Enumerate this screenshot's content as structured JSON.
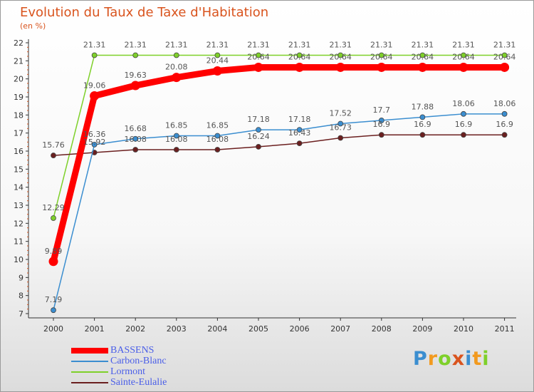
{
  "chart_data": {
    "type": "line",
    "title": "Evolution du Taux de Taxe d'Habitation",
    "subtitle": "(en %)",
    "categories": [
      "2000",
      "2001",
      "2002",
      "2003",
      "2004",
      "2005",
      "2006",
      "2007",
      "2008",
      "2009",
      "2010",
      "2011"
    ],
    "ylim": [
      7,
      22
    ],
    "yticks": [
      7,
      8,
      9,
      10,
      11,
      12,
      13,
      14,
      15,
      16,
      17,
      18,
      19,
      20,
      21,
      22
    ],
    "series": [
      {
        "name": "Lormont",
        "color": "#7ed02a",
        "values": [
          12.29,
          21.31,
          21.31,
          21.31,
          21.31,
          21.31,
          21.31,
          21.31,
          21.31,
          21.31,
          21.31,
          21.31
        ],
        "labels": [
          "12.29",
          "21.31",
          "21.31",
          "21.31",
          "21.31",
          "21.31",
          "21.31",
          "21.31",
          "21.31",
          "21.31",
          "21.31",
          "21.31"
        ]
      },
      {
        "name": "Sainte-Eulalie",
        "color": "#6b1f1f",
        "values": [
          15.76,
          15.92,
          16.08,
          16.08,
          16.08,
          16.24,
          16.43,
          16.73,
          16.9,
          16.9,
          16.9,
          16.9
        ],
        "labels": [
          "15.76",
          "15.92",
          "16.08",
          "16.08",
          "16.08",
          "16.24",
          "16.43",
          "16.73",
          "16.9",
          "16.9",
          "16.9",
          "16.9"
        ]
      },
      {
        "name": "Carbon-Blanc",
        "color": "#3b8ed0",
        "values": [
          7.19,
          16.36,
          16.68,
          16.85,
          16.85,
          17.18,
          17.18,
          17.52,
          17.7,
          17.88,
          18.06,
          18.06
        ],
        "labels": [
          "7.19",
          "16.36",
          "16.68",
          "16.85",
          "16.85",
          "17.18",
          "17.18",
          "17.52",
          "17.7",
          "17.88",
          "18.06",
          "18.06"
        ]
      },
      {
        "name": "BASSENS",
        "color": "#ff0000",
        "values": [
          9.89,
          19.06,
          19.63,
          20.08,
          20.44,
          20.64,
          20.64,
          20.64,
          20.64,
          20.64,
          20.64,
          20.64
        ],
        "labels": [
          "9.89",
          "19.06",
          "19.63",
          "20.08",
          "20.44",
          "20.64",
          "20.64",
          "20.64",
          "20.64",
          "20.64",
          "20.64",
          "20.64"
        ]
      }
    ],
    "legend_order": [
      "BASSENS",
      "Carbon-Blanc",
      "Lormont",
      "Sainte-Eulalie"
    ],
    "legend_colors": [
      "#ff0000",
      "#3b8ed0",
      "#7ed02a",
      "#6b1f1f"
    ],
    "grid": false,
    "legend_placement": "bottom-left"
  },
  "brand": {
    "letters": [
      "P",
      "r",
      "o",
      "x",
      "i",
      "t",
      "i"
    ],
    "colors": [
      "#3b8ed0",
      "#f29a1f",
      "#7ed02a",
      "#d9541e",
      "#3b8ed0",
      "#f29a1f",
      "#7ed02a"
    ]
  }
}
